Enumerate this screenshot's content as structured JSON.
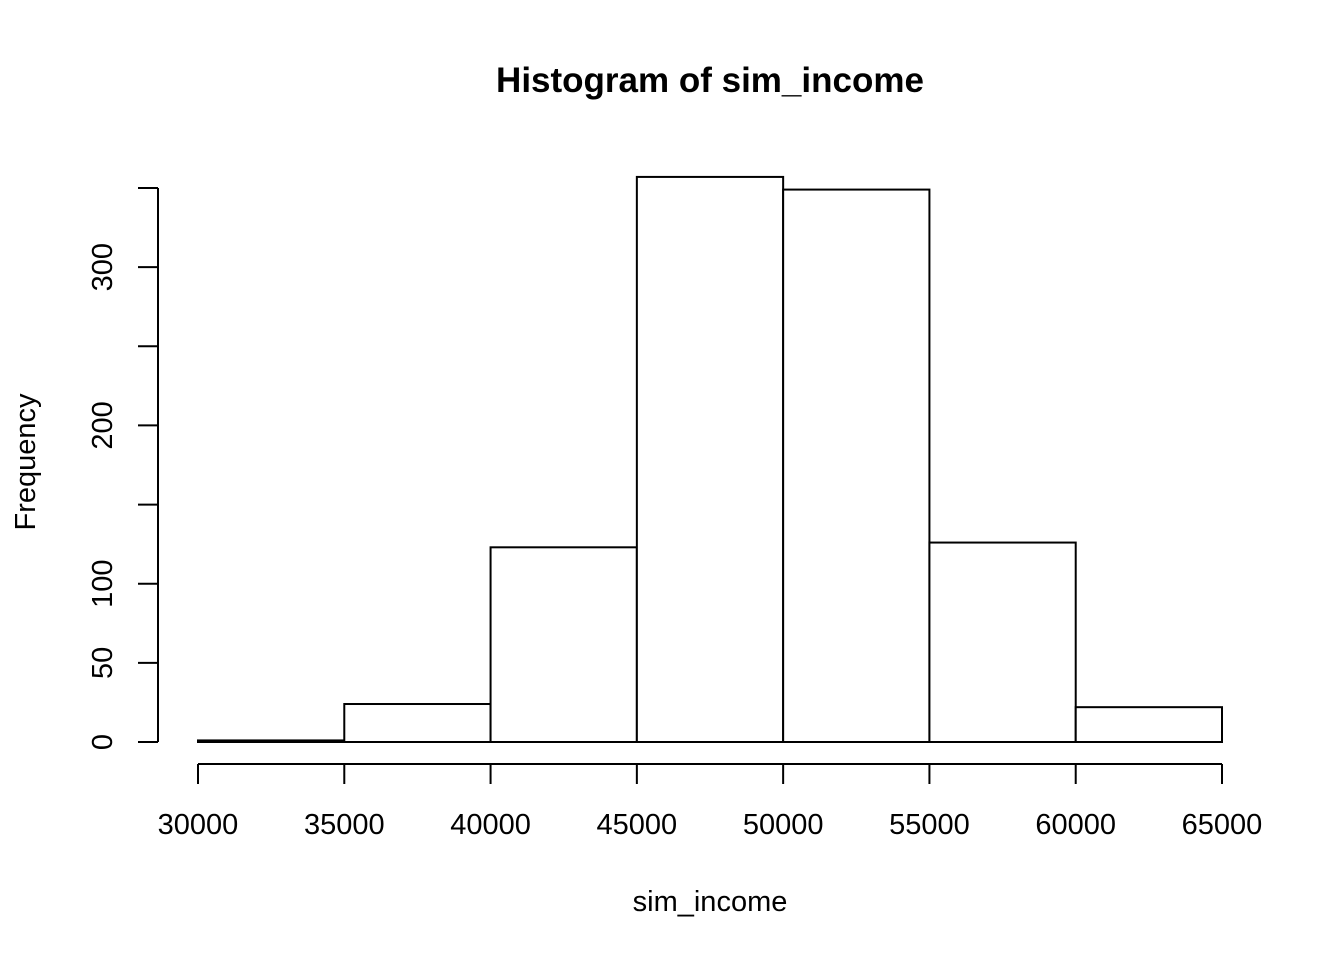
{
  "chart_data": {
    "type": "bar",
    "title": "Histogram of sim_income",
    "xlabel": "sim_income",
    "ylabel": "Frequency",
    "bins": [
      {
        "start": 30000,
        "end": 35000,
        "count": 1
      },
      {
        "start": 35000,
        "end": 40000,
        "count": 24
      },
      {
        "start": 40000,
        "end": 45000,
        "count": 123
      },
      {
        "start": 45000,
        "end": 50000,
        "count": 357
      },
      {
        "start": 50000,
        "end": 55000,
        "count": 349
      },
      {
        "start": 55000,
        "end": 60000,
        "count": 126
      },
      {
        "start": 60000,
        "end": 65000,
        "count": 22
      }
    ],
    "xlim": [
      30000,
      65000
    ],
    "ylim": [
      0,
      350
    ],
    "x_ticks": [
      "30000",
      "35000",
      "40000",
      "45000",
      "50000",
      "55000",
      "60000",
      "65000"
    ],
    "y_ticks": [
      0,
      50,
      100,
      150,
      200,
      250,
      300,
      350
    ],
    "y_tick_labels": [
      "0",
      "50",
      "100",
      "",
      "200",
      "",
      "300",
      ""
    ],
    "grid": false,
    "legend": "none",
    "colors": {
      "bar_fill": "#ffffff",
      "bar_stroke": "#000000"
    }
  }
}
